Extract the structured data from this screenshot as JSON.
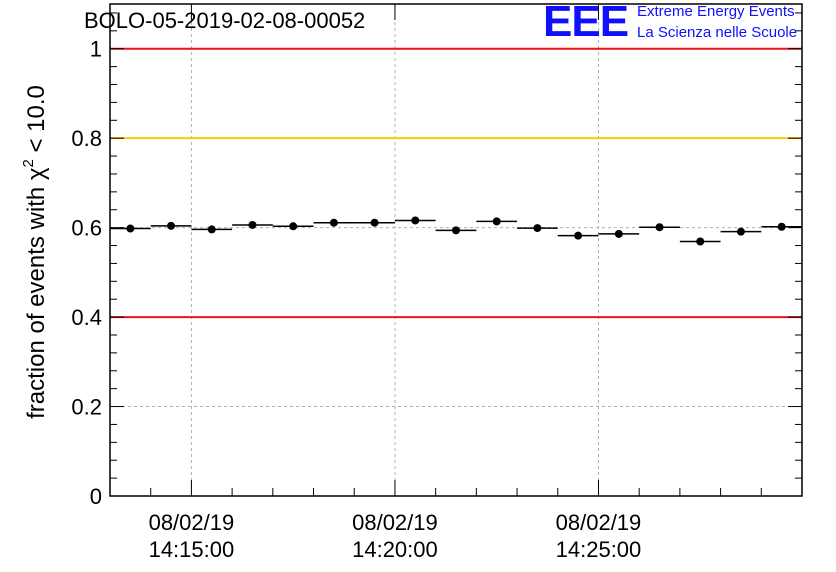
{
  "header": {
    "run_title": "BOLO-05-2019-02-08-00052",
    "logo_text": "EEE",
    "logo_line1": "Extreme Energy Events",
    "logo_line2": "La Scienza nelle Scuole"
  },
  "colors": {
    "red_line": "#e8141e",
    "yellow_line": "#ffc800",
    "logo_blue": "#1010ff",
    "grid": "#b0b0b0"
  },
  "chart_data": {
    "type": "scatter",
    "title": "BOLO-05-2019-02-08-00052",
    "xlabel": "",
    "ylabel_prefix": "fraction of events with ",
    "ylabel_symbol": "χ",
    "ylabel_sup": "2",
    "ylabel_suffix": " < 10.0",
    "x_unit": "minutes since 14:13:00",
    "xlim": [
      0,
      17
    ],
    "ylim": [
      0,
      1.1
    ],
    "y_ticks": [
      0,
      0.2,
      0.4,
      0.6,
      0.8,
      1
    ],
    "y_tick_labels": [
      "0",
      "0.2",
      "0.4",
      "0.6",
      "0.8",
      "1"
    ],
    "x_ticks": [
      {
        "x": 2,
        "label_date": "08/02/19",
        "label_time": "14:15:00"
      },
      {
        "x": 7,
        "label_date": "08/02/19",
        "label_time": "14:20:00"
      },
      {
        "x": 12,
        "label_date": "08/02/19",
        "label_time": "14:25:00"
      }
    ],
    "bin_width": 1,
    "x": [
      0.5,
      1.5,
      2.5,
      3.5,
      4.5,
      5.5,
      6.5,
      7.5,
      8.5,
      9.5,
      10.5,
      11.5,
      12.5,
      13.5,
      14.5,
      15.5,
      16.5
    ],
    "y": [
      0.598,
      0.604,
      0.596,
      0.606,
      0.603,
      0.611,
      0.611,
      0.616,
      0.594,
      0.614,
      0.599,
      0.582,
      0.586,
      0.601,
      0.569,
      0.591,
      0.602
    ],
    "reference_lines": [
      {
        "y": 1.0,
        "color": "red"
      },
      {
        "y": 0.8,
        "color": "yellow"
      },
      {
        "y": 0.4,
        "color": "red"
      }
    ]
  }
}
